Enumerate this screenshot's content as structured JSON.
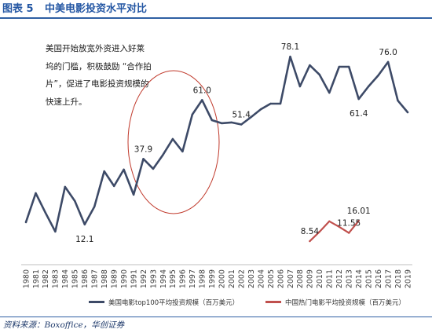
{
  "header": {
    "figure_no": "图表 5",
    "title": "中美电影投资水平对比"
  },
  "annotation": {
    "lines": [
      "美国开始放宽外资进入好莱",
      "坞的门槛，积极鼓励 “合作拍",
      "片”，促进了电影投资规模的",
      "快速上升。"
    ]
  },
  "source": "资料来源：Boxoffice，华创证券",
  "colors": {
    "title": "#2356a3",
    "rule": "#2e5fa3",
    "source": "#1f3a6b",
    "highlight_ellipse": "#c0392b",
    "axis": "#bfbfbf"
  },
  "chart_data": {
    "type": "line",
    "categories": [
      "1980",
      "1981",
      "1982",
      "1983",
      "1984",
      "1985",
      "1986",
      "1987",
      "1988",
      "1989",
      "1990",
      "1991",
      "1992",
      "1993",
      "1994",
      "1995",
      "1996",
      "1997",
      "1998",
      "1999",
      "2000",
      "2001",
      "2002",
      "2003",
      "2004",
      "2005",
      "2006",
      "2007",
      "2008",
      "2009",
      "2010",
      "2011",
      "2012",
      "2013",
      "2014",
      "2015",
      "2016",
      "2017",
      "2018",
      "2019"
    ],
    "x_axis": {
      "visible": true,
      "tick_label_rotation": "vertical"
    },
    "y_axis": {
      "visible": false,
      "primary_range": [
        0,
        88
      ],
      "secondary_range": [
        3.4,
        85.3
      ]
    },
    "grid": false,
    "legend_position": "bottom",
    "series": [
      {
        "name": "美国电影top100平均投资规模（百万美元）",
        "axis": "primary",
        "color": "#3d4a67",
        "values": [
          13.0,
          24.4,
          16.7,
          9.3,
          26.9,
          21.3,
          12.1,
          19.1,
          33.0,
          27.2,
          33.7,
          23.8,
          37.9,
          34.0,
          39.5,
          45.7,
          40.8,
          55.3,
          61.0,
          53.1,
          51.9,
          52.2,
          51.4,
          54.3,
          57.4,
          59.6,
          59.6,
          78.1,
          66.4,
          74.7,
          71.0,
          63.9,
          74.1,
          74.1,
          61.4,
          66.4,
          70.7,
          76.0,
          60.8,
          56.2
        ],
        "data_labels": [
          {
            "x": "1986",
            "text": "12.1",
            "position": "below"
          },
          {
            "x": "1992",
            "text": "37.9",
            "position": "above"
          },
          {
            "x": "1998",
            "text": "61.0",
            "position": "above"
          },
          {
            "x": "2002",
            "text": "51.4",
            "position": "above"
          },
          {
            "x": "2007",
            "text": "78.1",
            "position": "above"
          },
          {
            "x": "2014",
            "text": "61.4",
            "position": "below"
          },
          {
            "x": "2017",
            "text": "76.0",
            "position": "above"
          }
        ]
      },
      {
        "name": "中国热门电影平均投资规模（百万美元）",
        "axis": "secondary",
        "color": "#c0504d",
        "x": [
          "2009",
          "2010",
          "2011",
          "2012",
          "2013",
          "2014"
        ],
        "values": [
          8.54,
          12.0,
          15.8,
          13.8,
          11.55,
          16.01
        ],
        "data_labels": [
          {
            "x": "2009",
            "text": "8.54",
            "position": "above"
          },
          {
            "x": "2013",
            "text": "11.55",
            "position": "above"
          },
          {
            "x": "2014",
            "text": "16.01",
            "position": "above"
          }
        ]
      }
    ]
  }
}
